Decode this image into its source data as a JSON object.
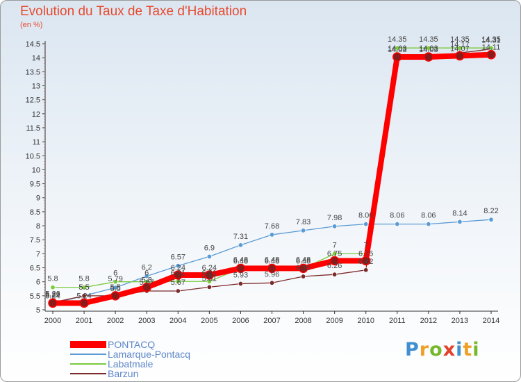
{
  "title": "Evolution du Taux de Taxe d'Habitation",
  "unit_label": "(en %)",
  "brand": {
    "text": "Proxiti",
    "letters": [
      {
        "ch": "P",
        "color": "#3f8fd1"
      },
      {
        "ch": "r",
        "color": "#f0a024"
      },
      {
        "ch": "o",
        "color": "#76b82a"
      },
      {
        "ch": "x",
        "color": "#e2412c"
      },
      {
        "ch": "i",
        "color": "#3f8fd1"
      },
      {
        "ch": "t",
        "color": "#f0a024"
      },
      {
        "ch": "i",
        "color": "#76b82a"
      }
    ]
  },
  "chart_data": {
    "type": "line",
    "title": "Evolution du Taux de Taxe d'Habitation",
    "ylabel": "(en %)",
    "xlabel": "",
    "x": [
      "2000",
      "2001",
      "2002",
      "2003",
      "2004",
      "2005",
      "2006",
      "2007",
      "2008",
      "2009",
      "2010",
      "2011",
      "2012",
      "2013",
      "2014"
    ],
    "ylim": [
      5,
      14.5
    ],
    "yticks": [
      "5",
      "5.5",
      "6",
      "6.5",
      "7",
      "7.5",
      "8",
      "8.5",
      "9",
      "9.5",
      "10",
      "10.5",
      "11",
      "11.5",
      "12",
      "12.5",
      "13",
      "13.5",
      "14",
      "14.5"
    ],
    "grid": false,
    "legend_position": "bottom-left",
    "series": [
      {
        "name": "PONTACQ",
        "color": "#ff0000",
        "values": [
          5.24,
          5.24,
          5.5,
          5.8,
          6.24,
          6.24,
          6.48,
          6.48,
          6.48,
          6.75,
          6.75,
          14.03,
          14.03,
          14.07,
          14.11
        ],
        "labels": [
          "5.24",
          "5.24",
          "5.5",
          "5.8",
          "6.24",
          "6.24",
          "6.48",
          "6.48",
          "6.48",
          "6.75",
          "6.75",
          "14.03",
          "14.03",
          "14.07",
          "14.11"
        ]
      },
      {
        "name": "Lamarque-Pontacq",
        "color": "#5b9bd5",
        "values": [
          5.22,
          5.5,
          5.79,
          6.2,
          6.57,
          6.9,
          7.31,
          7.68,
          7.83,
          7.98,
          8.06,
          8.06,
          8.06,
          8.14,
          8.22
        ],
        "labels": [
          "5.22",
          "5.5",
          "5.79",
          "6.2",
          "6.57",
          "6.9",
          "7.31",
          "7.68",
          "7.83",
          "7.98",
          "8.06",
          "8.06",
          "8.06",
          "8.14",
          "8.22"
        ]
      },
      {
        "name": "Labatmale",
        "color": "#7acb3e",
        "values": [
          5.8,
          5.8,
          6,
          6,
          6.01,
          6.01,
          6.48,
          6.48,
          6.48,
          7,
          7,
          14.35,
          14.35,
          14.35,
          14.35
        ],
        "labels": [
          "5.8",
          "5.8",
          "6",
          "6",
          "6.01",
          "6.01",
          "6.48",
          "6.48",
          "6.48",
          "7",
          "7",
          "14.35",
          "14.35",
          "14.35",
          "14.35"
        ]
      },
      {
        "name": "Barzun",
        "color": "#7b2a2a",
        "values": [
          5.26,
          5.5,
          5.5,
          5.67,
          5.67,
          5.81,
          5.93,
          5.96,
          6.19,
          6.26,
          6.42,
          14.03,
          14.03,
          14.17,
          14.31
        ],
        "labels": [
          "5.26",
          "5.5",
          "5.5",
          "5.67",
          "5.67",
          "5.81",
          "5.93",
          "5.96",
          "6.19",
          "6.26",
          "6.42",
          "14.03",
          "14.03",
          "14.17",
          "14.31"
        ]
      }
    ]
  }
}
